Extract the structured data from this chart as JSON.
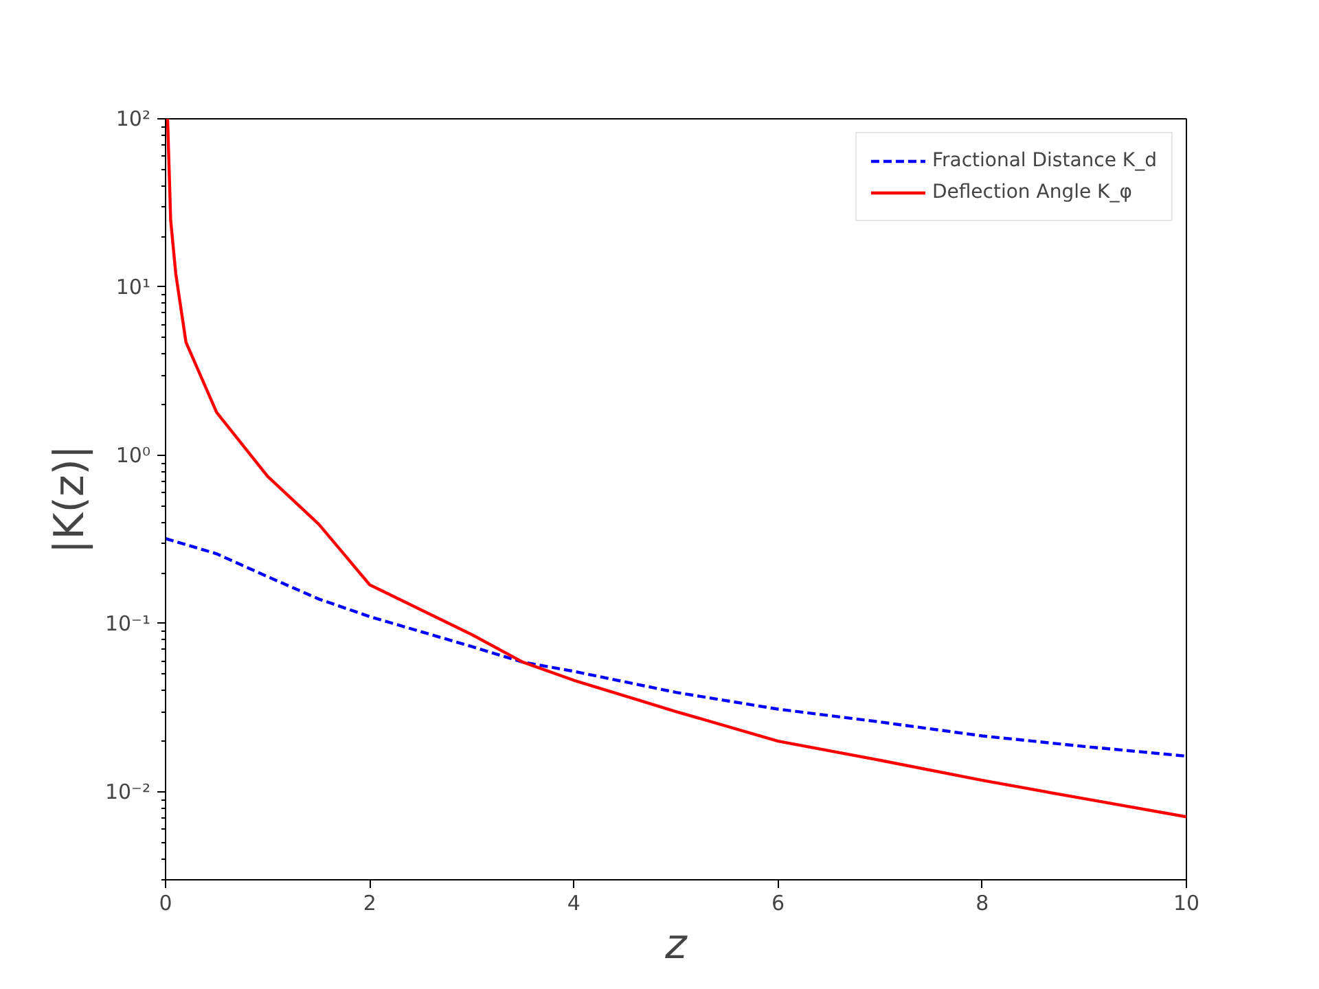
{
  "chart_data": {
    "type": "line",
    "xlabel": "z",
    "ylabel": "|K(z)|",
    "log": "y",
    "grid": false,
    "legend": "top right",
    "xlim": [
      0,
      10
    ],
    "xticks": [
      0,
      2,
      4,
      6,
      8,
      10
    ],
    "ylim": [
      0.003,
      100
    ],
    "yticks": [
      {
        "value": 0.01,
        "label": "10⁻²"
      },
      {
        "value": 0.1,
        "label": "10⁻¹"
      },
      {
        "value": 1,
        "label": "10⁰"
      },
      {
        "value": 10,
        "label": "10¹"
      },
      {
        "value": 100,
        "label": "10²"
      }
    ],
    "series": [
      {
        "name": "Fractional Distance K_d",
        "color": "#0000ff",
        "line_style": "dashed",
        "x": [
          0,
          0.5,
          1,
          1.5,
          2,
          3,
          3.5,
          4,
          5,
          6,
          7,
          8,
          9,
          10
        ],
        "values": [
          0.32,
          0.26,
          0.19,
          0.14,
          0.11,
          0.073,
          0.059,
          0.052,
          0.039,
          0.031,
          0.026,
          0.0215,
          0.0186,
          0.0163
        ]
      },
      {
        "name": "Deflection Angle K_φ",
        "color": "#ff0000",
        "line_style": "solid",
        "x": [
          0.02,
          0.05,
          0.1,
          0.2,
          0.5,
          1,
          1.5,
          2,
          3,
          3.5,
          4,
          5,
          6,
          7,
          8,
          9,
          10
        ],
        "values": [
          100,
          25,
          12,
          4.7,
          1.8,
          0.75,
          0.39,
          0.17,
          0.086,
          0.059,
          0.046,
          0.03,
          0.02,
          0.0154,
          0.0117,
          0.0091,
          0.0071
        ]
      }
    ]
  }
}
